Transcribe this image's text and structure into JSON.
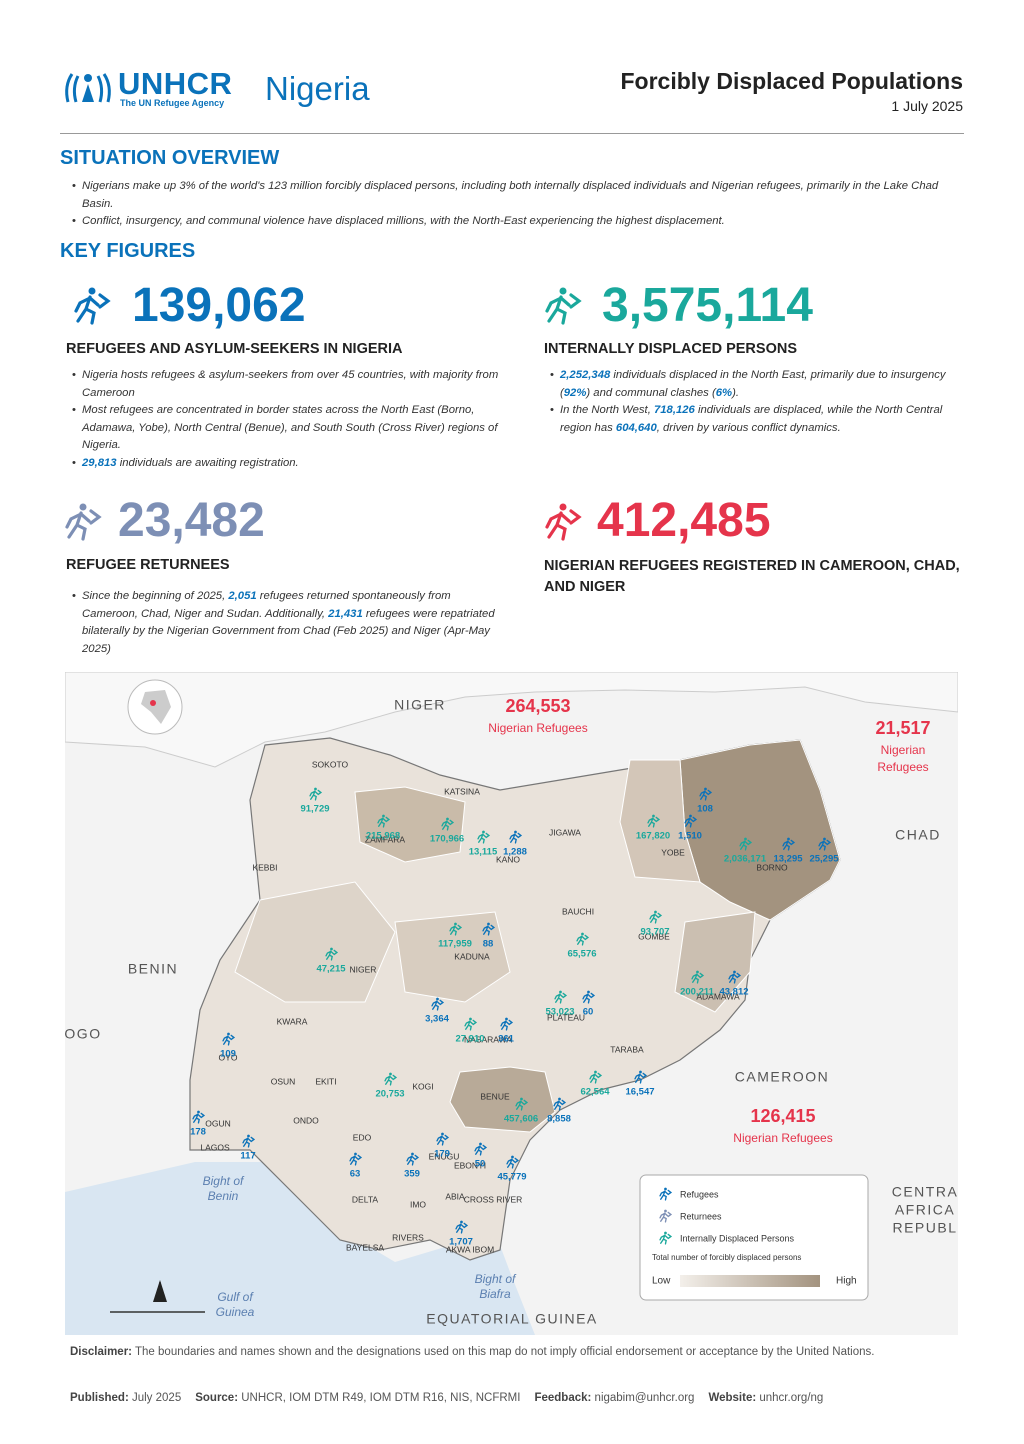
{
  "header": {
    "logo": "UNHCR",
    "logo_tagline": "The UN Refugee Agency",
    "country": "Nigeria",
    "title": "Forcibly Displaced Populations",
    "date": "1 July 2025"
  },
  "overview": {
    "heading": "SITUATION OVERVIEW",
    "bullets": [
      [
        "Nigerians make up 3% of the world's 123 million forcibly displaced persons, including both internally displaced individuals and Nigerian refugees, primarily in the Lake Chad Basin."
      ],
      [
        "Conflict, insurgency, and communal violence have displaced millions, with the North-East experiencing the highest displacement."
      ]
    ]
  },
  "key_figures": {
    "heading": "KEY FIGURES",
    "items": [
      {
        "value": "139,062",
        "color": "#0a72ba",
        "label": "REFUGEES AND ASYLUM-SEEKERS IN NIGERIA",
        "bullets": [
          [
            "Nigeria hosts refugees & asylum-seekers from over 45 countries, with majority from Cameroon"
          ],
          [
            "Most refugees are concentrated in border states across the North East (Borno, Adamawa, Yobe), North Central (Benue), and South South (Cross River) regions of Nigeria."
          ],
          [
            {
              "em": "29,813"
            },
            " individuals are awaiting registration."
          ]
        ]
      },
      {
        "value": "3,575,114",
        "color": "#1aa89c",
        "label": "INTERNALLY DISPLACED PERSONS",
        "bullets": [
          [
            {
              "em": "2,252,348"
            },
            " individuals displaced in the North East, primarily due to insurgency (",
            {
              "em": "92%"
            },
            ") and communal clashes (",
            {
              "em": "6%"
            },
            ")."
          ],
          [
            "In the North West, ",
            {
              "em": "718,126"
            },
            " individuals are displaced, while the North Central region has ",
            {
              "em": "604,640"
            },
            ", driven by various conflict dynamics."
          ]
        ]
      },
      {
        "value": "23,482",
        "color": "#7d8fb5",
        "label": "REFUGEE RETURNEES",
        "bullets": [
          [
            "Since the beginning of 2025, ",
            {
              "em": "2,051"
            },
            " refugees returned spontaneously from Cameroon, Chad, Niger and Sudan. Additionally, ",
            {
              "em": "21,431"
            },
            " refugees were repatriated bilaterally by the Nigerian Government from Chad (Feb 2025) and Niger (Apr-May 2025)"
          ]
        ]
      },
      {
        "value": "412,485",
        "color": "#e5344b",
        "label": "NIGERIAN REFUGEES REGISTERED IN CAMEROON, CHAD, AND NIGER"
      }
    ]
  },
  "map": {
    "countries": [
      "NIGER",
      "CHAD",
      "BENIN",
      "OGO",
      "CAMEROON",
      "EQUATORIAL GUINEA",
      "CENTRA",
      "AFRICA",
      "REPUBL"
    ],
    "waters": [
      "Bight of",
      "Benin",
      "Gulf of",
      "Guinea",
      "Bight of",
      "Biafra"
    ],
    "callouts": [
      {
        "value": "264,553",
        "caption": [
          "Nigerian Refugees"
        ]
      },
      {
        "value": "21,517",
        "caption": [
          "Nigerian",
          "Refugees"
        ]
      },
      {
        "value": "126,415",
        "caption": [
          "Nigerian Refugees"
        ]
      }
    ],
    "states": [
      {
        "name": "SOKOTO",
        "figures": [
          {
            "value": "91,729",
            "color": "#1aa89c"
          }
        ]
      },
      {
        "name": "ZAMFARA",
        "figures": [
          {
            "value": "215,968",
            "color": "#1aa89c"
          }
        ]
      },
      {
        "name": "KATSINA",
        "figures": [
          {
            "value": "170,966",
            "color": "#1aa89c"
          }
        ]
      },
      {
        "name": "KANO",
        "figures": [
          {
            "value": "13,115",
            "color": "#1aa89c"
          },
          {
            "value": "1,288",
            "color": "#0a72ba"
          }
        ]
      },
      {
        "name": "JIGAWA"
      },
      {
        "name": "YOBE",
        "figures": [
          {
            "value": "167,820",
            "color": "#1aa89c"
          },
          {
            "value": "1,510",
            "color": "#0a72ba"
          },
          {
            "value": "108",
            "color": "#0a72ba"
          }
        ]
      },
      {
        "name": "BORNO",
        "figures": [
          {
            "value": "2,036,171",
            "color": "#1aa89c"
          },
          {
            "value": "13,295",
            "color": "#0a72ba"
          },
          {
            "value": "25,295",
            "color": "#0a72ba"
          }
        ]
      },
      {
        "name": "KEBBI"
      },
      {
        "name": "NIGER",
        "figures": [
          {
            "value": "47,215",
            "color": "#1aa89c"
          }
        ]
      },
      {
        "name": "KADUNA",
        "figures": [
          {
            "value": "117,959",
            "color": "#1aa89c"
          },
          {
            "value": "88",
            "color": "#0a72ba"
          }
        ]
      },
      {
        "name": "BAUCHI",
        "figures": [
          {
            "value": "65,576",
            "color": "#1aa89c"
          }
        ]
      },
      {
        "name": "GOMBE",
        "figures": [
          {
            "value": "93,707",
            "color": "#1aa89c"
          }
        ]
      },
      {
        "name": "ADAMAWA",
        "figures": [
          {
            "value": "200,211",
            "color": "#1aa89c"
          },
          {
            "value": "43,812",
            "color": "#0a72ba"
          }
        ]
      },
      {
        "name": "PLATEAU",
        "figures": [
          {
            "value": "53,023",
            "color": "#1aa89c"
          },
          {
            "value": "60",
            "color": "#0a72ba"
          }
        ]
      },
      {
        "name": "NASARAWA",
        "figures": [
          {
            "value": "27,910",
            "color": "#1aa89c"
          },
          {
            "value": "361",
            "color": "#0a72ba"
          }
        ]
      },
      {
        "name": null,
        "figures": [
          {
            "value": "3,364",
            "color": "#0a72ba"
          }
        ]
      },
      {
        "name": "TARABA",
        "figures": [
          {
            "value": "62,564",
            "color": "#1aa89c"
          },
          {
            "value": "16,547",
            "color": "#0a72ba"
          }
        ]
      },
      {
        "name": "KWARA"
      },
      {
        "name": "OYO",
        "figures": [
          {
            "value": "109",
            "color": "#0a72ba"
          }
        ]
      },
      {
        "name": "OSUN"
      },
      {
        "name": "EKITI"
      },
      {
        "name": "KOGI",
        "figures": [
          {
            "value": "20,753",
            "color": "#1aa89c"
          }
        ]
      },
      {
        "name": "BENUE",
        "figures": [
          {
            "value": "457,606",
            "color": "#1aa89c"
          },
          {
            "value": "8,858",
            "color": "#0a72ba"
          }
        ]
      },
      {
        "name": "OGUN",
        "figures": [
          {
            "value": "178",
            "color": "#0a72ba"
          }
        ]
      },
      {
        "name": "LAGOS",
        "figures": [
          {
            "value": "117",
            "color": "#0a72ba"
          }
        ]
      },
      {
        "name": "ONDO"
      },
      {
        "name": "EDO",
        "figures": [
          {
            "value": "63",
            "color": "#0a72ba"
          }
        ]
      },
      {
        "name": "ENUGU",
        "figures": [
          {
            "value": "179",
            "color": "#0a72ba"
          },
          {
            "value": "359",
            "color": "#0a72ba"
          }
        ]
      },
      {
        "name": "EBONYI",
        "figures": [
          {
            "value": "50",
            "color": "#0a72ba"
          }
        ]
      },
      {
        "name": "DELTA"
      },
      {
        "name": "IMO"
      },
      {
        "name": "ABIA"
      },
      {
        "name": "CROSS RIVER",
        "figures": [
          {
            "value": "45,779",
            "color": "#0a72ba"
          }
        ]
      },
      {
        "name": "RIVERS"
      },
      {
        "name": "AKWA IBOM",
        "figures": [
          {
            "value": "1,707",
            "color": "#0a72ba"
          }
        ]
      },
      {
        "name": "BAYELSA"
      }
    ],
    "legend": {
      "items": [
        {
          "label": "Refugees",
          "color": "#0a72ba"
        },
        {
          "label": "Returnees",
          "color": "#7d8fb5"
        },
        {
          "label": "Internally Displaced Persons",
          "color": "#1aa89c"
        }
      ],
      "title": "Total number of forcibly displaced persons",
      "low": "Low",
      "high": "High"
    }
  },
  "footer": {
    "disclaimer_label": "Disclaimer:",
    "disclaimer": "The boundaries and names shown and the designations used on this map do not imply official endorsement or acceptance by the United Nations.",
    "meta": [
      {
        "label": "Published:",
        "text": "July 2025"
      },
      {
        "label": "Source:",
        "text": "UNHCR, IOM DTM R49, IOM DTM R16, NIS, NCFRMI"
      },
      {
        "label": "Feedback:",
        "text": "nigabim@unhcr.org"
      },
      {
        "label": "Website:",
        "text": "unhcr.org/ng"
      }
    ]
  }
}
